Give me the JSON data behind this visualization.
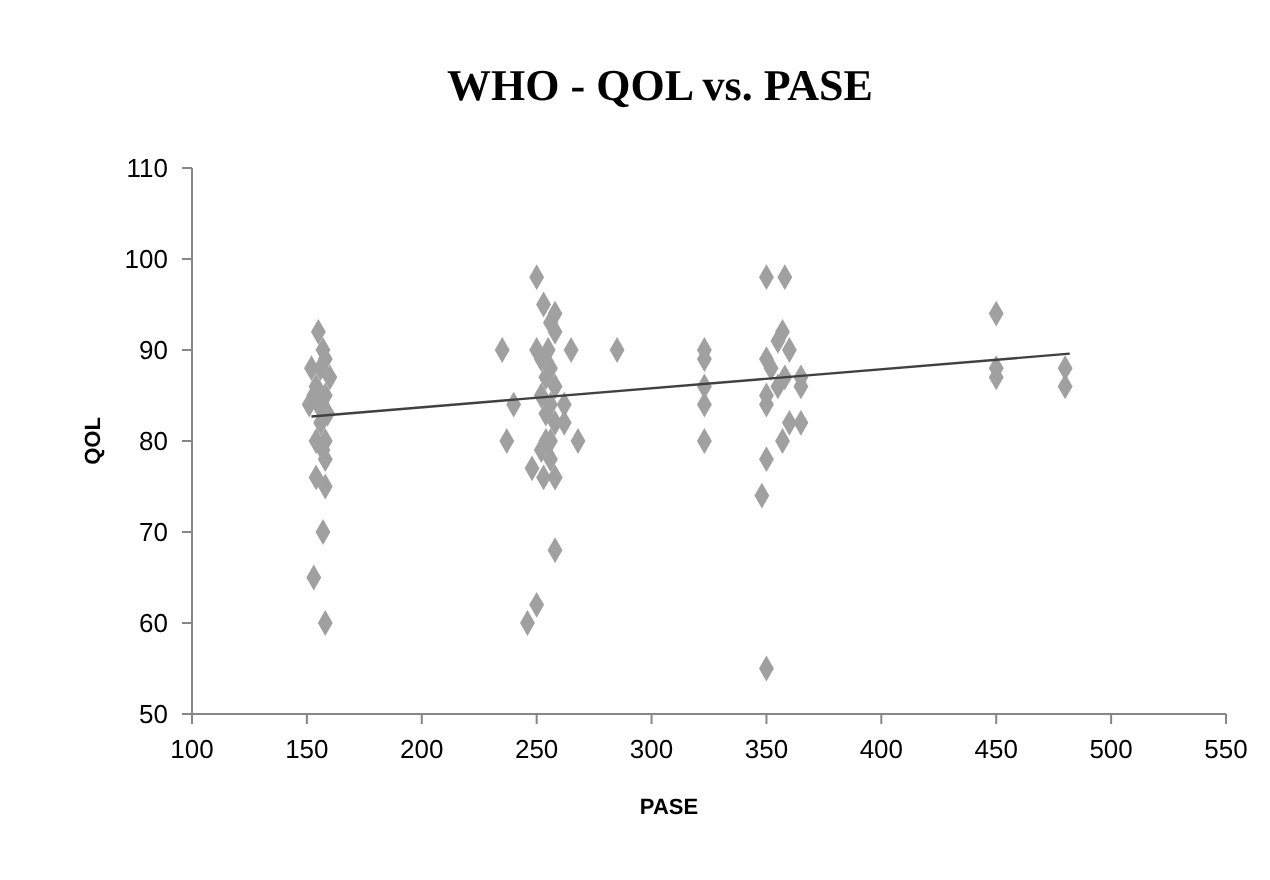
{
  "chart_data": {
    "type": "scatter",
    "title": "WHO - QOL vs. PASE",
    "xlabel": "PASE",
    "ylabel": "QOL",
    "xlim": [
      100,
      550
    ],
    "xticks": [
      100,
      150,
      200,
      250,
      300,
      350,
      400,
      450,
      500,
      550
    ],
    "ylim": [
      50,
      110
    ],
    "yticks": [
      50,
      60,
      70,
      80,
      90,
      100,
      110
    ],
    "grid": false,
    "marker": "diamond",
    "series": [
      {
        "color": "#a0a0a0",
        "x": [
          155,
          157,
          158,
          152,
          156,
          160,
          154,
          158,
          153,
          151,
          155,
          159,
          156,
          154,
          158,
          157,
          158,
          154,
          158,
          157,
          153,
          158,
          250,
          253,
          258,
          256,
          258,
          250,
          255,
          252,
          256,
          254,
          258,
          252,
          256,
          262,
          254,
          258,
          254,
          256,
          252,
          256,
          248,
          258,
          253,
          258,
          258,
          250,
          235,
          237,
          240,
          265,
          268,
          285,
          262,
          246,
          323,
          323,
          323,
          323,
          323,
          350,
          358,
          357,
          355,
          360,
          350,
          352,
          358,
          355,
          350,
          350,
          360,
          365,
          357,
          350,
          348,
          350,
          365,
          365,
          450,
          450,
          450,
          480,
          480
        ],
        "values": [
          92,
          90,
          89,
          88,
          88,
          87,
          86,
          85,
          85,
          84,
          84,
          83,
          82,
          80,
          80,
          79,
          78,
          76,
          75,
          70,
          65,
          60,
          98,
          95,
          94,
          93,
          92,
          90,
          90,
          89,
          88,
          87,
          86,
          85,
          84,
          84,
          83,
          82,
          80,
          80,
          79,
          78,
          77,
          76,
          76,
          76,
          68,
          62,
          90,
          80,
          84,
          90,
          80,
          90,
          82,
          60,
          90,
          89,
          86,
          84,
          80,
          98,
          98,
          92,
          91,
          90,
          89,
          88,
          87,
          86,
          85,
          84,
          82,
          82,
          80,
          78,
          74,
          55,
          87,
          86,
          94,
          88,
          87,
          88,
          86
        ]
      },
      {
        "type": "line",
        "color": "#404040",
        "x": [
          152,
          482
        ],
        "values": [
          82.7,
          89.6
        ],
        "marker": "none"
      }
    ]
  }
}
